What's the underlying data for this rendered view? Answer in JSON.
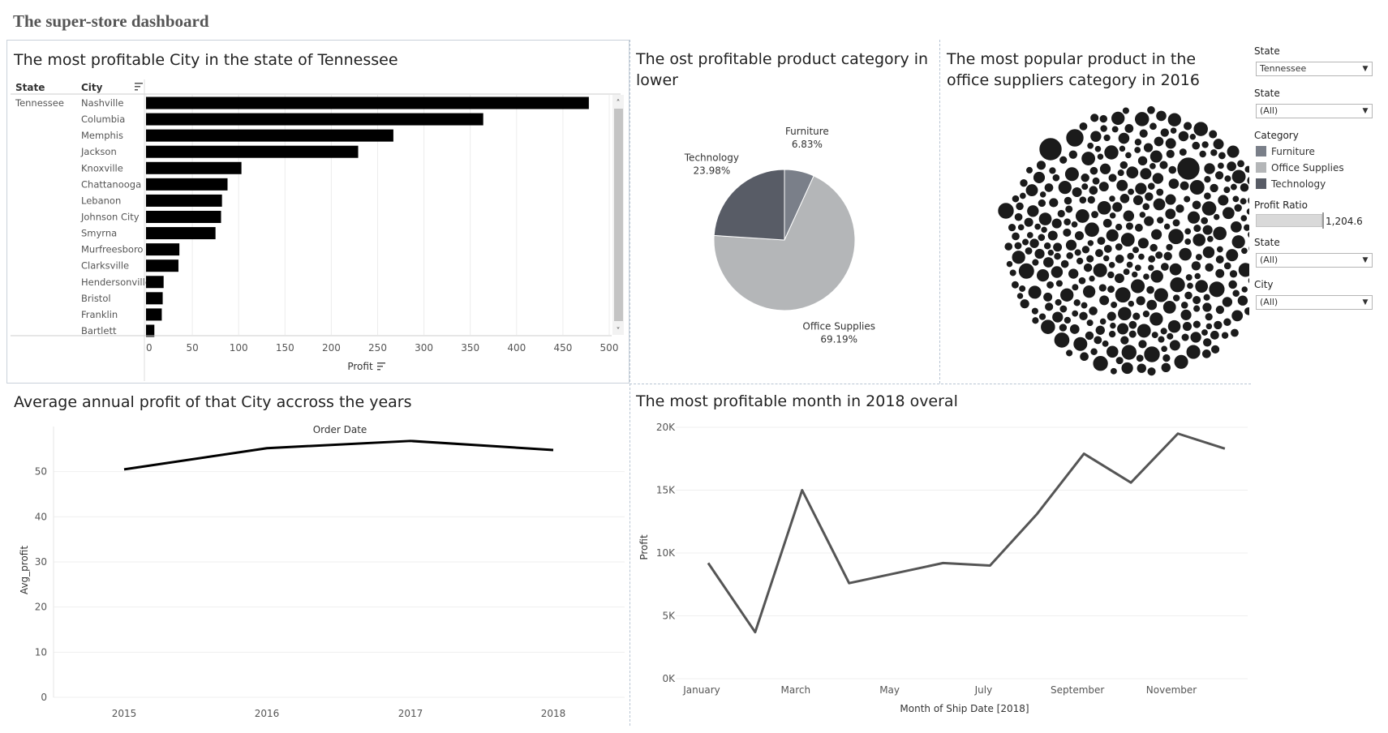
{
  "dashboard": {
    "title": "The super-store dashboard"
  },
  "panels": {
    "city_profit": {
      "title": "The most profitable City in the state of Tennessee",
      "state_header": "State",
      "city_header": "City",
      "state_value": "Tennessee",
      "axis_title": "Profit"
    },
    "category_pie": {
      "title_line1": "The ost profitable product category in",
      "title_line2": "lower"
    },
    "popular_product": {
      "title_line1": "The most popular product in the",
      "title_line2": "office suppliers category in 2016"
    },
    "annual_profit": {
      "title": "Average annual profit of that City accross the years"
    },
    "monthly_profit": {
      "title": "The most profitable month in 2018 overal"
    }
  },
  "filters": {
    "state_1": {
      "label": "State",
      "value": "Tennessee"
    },
    "state_2": {
      "label": "State",
      "value": "(All)"
    },
    "category_legend": {
      "label": "Category",
      "items": [
        {
          "name": "Furniture",
          "color": "#7a7f89"
        },
        {
          "name": "Office Supplies",
          "color": "#b4b6b8"
        },
        {
          "name": "Technology",
          "color": "#585c66"
        }
      ]
    },
    "profit_ratio": {
      "label": "Profit Ratio",
      "value": "1,204.6"
    },
    "state_3": {
      "label": "State",
      "value": "(All)"
    },
    "city": {
      "label": "City",
      "value": "(All)"
    }
  },
  "chart_data": [
    {
      "type": "bar",
      "title": "The most profitable City in the state of Tennessee",
      "orientation": "horizontal",
      "row_dimension": "State",
      "row_value": "Tennessee",
      "categories": [
        "Nashville",
        "Columbia",
        "Memphis",
        "Jackson",
        "Knoxville",
        "Chattanooga",
        "Lebanon",
        "Johnson City",
        "Smyrna",
        "Murfreesboro",
        "Clarksville",
        "Hendersonville",
        "Bristol",
        "Franklin",
        "Bartlett"
      ],
      "values": [
        478,
        364,
        267,
        229,
        103,
        88,
        82,
        81,
        75,
        36,
        35,
        19,
        18,
        17,
        9
      ],
      "xlabel": "Profit",
      "xlim": [
        0,
        500
      ],
      "xticks": [
        0,
        50,
        100,
        150,
        200,
        250,
        300,
        350,
        400,
        450,
        500
      ],
      "color": "#000000",
      "grid": true
    },
    {
      "type": "pie",
      "slices": [
        {
          "label": "Furniture",
          "value": 6.83,
          "display": "6.83%",
          "color": "#7a7f89"
        },
        {
          "label": "Office Supplies",
          "value": 69.19,
          "display": "69.19%",
          "color": "#b4b6b8"
        },
        {
          "label": "Technology",
          "value": 23.98,
          "display": "23.98%",
          "color": "#585c66"
        }
      ]
    },
    {
      "type": "line",
      "title": "Average annual profit of that City accross the years",
      "top_label": "Order Date",
      "x": [
        "2015",
        "2016",
        "2017",
        "2018"
      ],
      "values": [
        50.5,
        55.2,
        56.8,
        54.8
      ],
      "ylabel": "Avg_profit",
      "ylim": [
        0,
        60
      ],
      "yticks": [
        0,
        10,
        20,
        30,
        40,
        50
      ],
      "color": "#000000",
      "grid": true
    },
    {
      "type": "line",
      "title": "The most profitable month in 2018 overal",
      "x": [
        "January",
        "February",
        "March",
        "April",
        "May",
        "June",
        "July",
        "August",
        "September",
        "October",
        "November",
        "December"
      ],
      "xticks": [
        "January",
        "March",
        "May",
        "July",
        "September",
        "November"
      ],
      "values": [
        9200,
        3700,
        15000,
        7600,
        8400,
        9200,
        9000,
        13100,
        17900,
        15600,
        19500,
        18300
      ],
      "xlabel": "Month of Ship Date [2018]",
      "ylabel": "Profit",
      "ylim": [
        0,
        20000
      ],
      "yticks": [
        "0K",
        "5K",
        "10K",
        "15K",
        "20K"
      ],
      "color": "#555555",
      "grid": true
    }
  ]
}
